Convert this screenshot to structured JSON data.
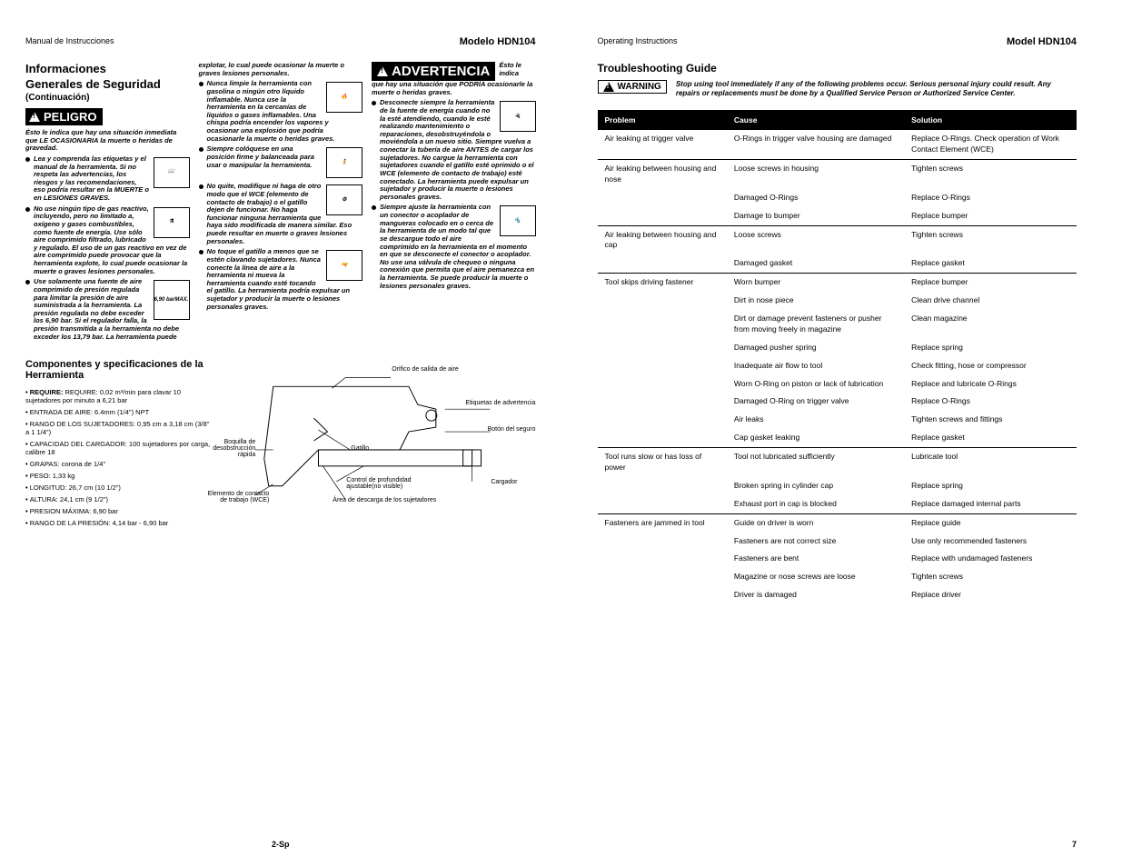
{
  "left_page": {
    "header_left": "Manual de Instrucciones",
    "header_right": "Modelo HDN104",
    "section_title_1": "Informaciones",
    "section_title_2": "Generales de Seguridad",
    "cont": "(Continuación)",
    "peligro": "PELIGRO",
    "peligro_intro": "Ésto le indica que hay una situación inmediata que LE OCASIONARIA la muerte o heridas de gravedad.",
    "b1": "Lea y comprenda las etiquetas y el manual de la herramienta. Si no respeta las advertencias, los riesgos y las recomendaciones, eso podría resultar en la MUERTE o en LESIONES GRAVES.",
    "b2": "No use ningún tipo de gas reactivo, incluyendo, pero no limitado a, oxígeno y gases combustibles, como fuente de energía. Use sólo aire comprimido filtrado, lubricado y regulado. El uso de un gas reactivo en vez de aire comprimido puede provocar que la herramienta explote, lo cual puede ocasionar la muerte o graves lesiones personales.",
    "b3": "Use solamente una fuente de aire comprimido de presión regulada para limitar la presión de aire suministrada a la herramienta. La presión regulada no debe exceder los 6,90 bar. Si el regulador falla, la presión transmitida a la herramienta no debe exceder los 13,79 bar. La herramienta puede",
    "gauge": "6,90 bar",
    "max": "MAX.",
    "col2_top": "explotar, lo cual puede ocasionar la muerte o graves lesiones personales.",
    "c1": "Nunca limpie la herramienta con gasolina o ningún otro líquido inflamable. Nunca use la herramienta en la cercanías de líquidos o gases inflamables. Una chispa podría encender los vapores y ocasionar una explosión que podría ocasionarle la muerte o heridas graves.",
    "c2": "Siempre colóquese en una posición firme y balanceada para usar o manipular la herramienta.",
    "c3": "No quite, modifique ni haga de otro modo que el WCE (elemento de contacto de trabajo) o el gatillo dejen de funcionar. No haga funcionar ninguna herramienta que haya sido modificada de manera similar. Eso puede resultar en muerte o graves lesiones personales.",
    "c4": "No toque el gatillo a menos que se estén clavando sujetadores. Nunca conecte la línea de aire a la herramienta ni mueva la herramienta cuando esté tocando el gatillo. La herramienta podría expulsar un sujetador y producir la muerte o lesiones personales graves.",
    "adv": "ADVERTENCIA",
    "adv_intro_a": "Ésto le indica",
    "adv_intro_b": "que hay una situación que PODRÍA ocasionarle la muerte o heridas graves.",
    "d1": "Desconecte siempre la herramienta de la fuente de energía cuando no la esté atendiendo, cuando le esté realizando mantenimiento o reparaciones, desobstruyéndola o moviéndola a un nuevo sitio. Siempre vuelva a conectar la tubería de aire ANTES de cargar los sujetadores. No cargue la herramienta con sujetadores cuando el gatillo esté oprimido o el WCE (elemento de contacto de trabajo) esté conectado. La herramienta puede expulsar un sujetador y producir la muerte o lesiones personales graves.",
    "d2": "Siempre ajuste la herramienta con un conector o acoplador de mangueras colocado en o cerca de la herramienta de un modo tal que se descargue todo el aire comprimido en la herramienta en el momento en que se desconecte el conector o acoplador. No use una válvula de chequeo o ninguna conexión que permita que el aire pemanezca en la herramienta. Se puede producir la muerte o lesiones personales graves.",
    "comp_title": "Componentes y specificaciones de la Herramienta",
    "specs": {
      "s1": "REQUIRE: 0,02 m³/min para clavar 10 sujetadores por minuto a 6,21 bar",
      "s2": "ENTRADA DE AIRE: 6.4mm (1/4\") NPT",
      "s3": "RANGO DE LOS SUJETADORES: 0,95 cm a 3,18 cm (3/8\" a 1 1/4\")",
      "s4": "CAPACIDAD DEL CARGADOR: 100 sujetadores por carga, calibre 18",
      "s5": "GRAPAS: corona de 1/4\"",
      "s6": "PESO: 1,33 kg",
      "s7": "LONGITUD: 26,7 cm (10 1/2\")",
      "s8": "ALTURA: 24,1 cm (9 1/2\")",
      "s9": "PRESION MÁXIMA: 6,90 bar",
      "s10": "RANGO DE LA PRESIÓN: 4,14 bar - 6,90 bar"
    },
    "dlabels": {
      "l1": "Orifico de salida de aire",
      "l2": "Etiquetas de advertencia",
      "l3": "Botón del seguro",
      "l4": "Gatillo",
      "l5": "Boquilla de desobstrucción rápida",
      "l6": "Control de profundidad ajustable(no visible)",
      "l7": "Cargador",
      "l8": "Elemento de contacto de trabajo (WCE)",
      "l9": "Área de descarga de los sujetadores"
    },
    "pagenum": "2-Sp"
  },
  "right_page": {
    "header_left": "Operating Instructions",
    "header_right": "Model HDN104",
    "ts_title": "Troubleshooting Guide",
    "warn_label": "WARNING",
    "warn_text": "Stop using tool immediately if any of the following problems occur. Serious personal injury could result. Any repairs or replacements must be done by a Qualified Service Person or Authorized Service Center.",
    "th1": "Problem",
    "th2": "Cause",
    "th3": "Solution",
    "rows": [
      {
        "p": "Air leaking at trigger valve",
        "c": "O-Rings in trigger valve housing are damaged",
        "s": "Replace O-Rings. Check operation of Work Contact Element (WCE)",
        "sep": false
      },
      {
        "p": "Air leaking between housing and nose",
        "c": "Loose screws in housing",
        "s": "Tighten screws",
        "sep": true
      },
      {
        "p": "",
        "c": "Damaged O-Rings",
        "s": "Replace O-Rings",
        "sep": false
      },
      {
        "p": "",
        "c": "Damage to bumper",
        "s": "Replace bumper",
        "sep": false
      },
      {
        "p": "Air leaking between housing and cap",
        "c": "Loose screws",
        "s": "Tighten screws",
        "sep": true
      },
      {
        "p": "",
        "c": "Damaged gasket",
        "s": "Replace gasket",
        "sep": false
      },
      {
        "p": "Tool skips driving fastener",
        "c": "Worn bumper",
        "s": "Replace bumper",
        "sep": true
      },
      {
        "p": "",
        "c": "Dirt in nose piece",
        "s": "Clean drive channel",
        "sep": false
      },
      {
        "p": "",
        "c": "Dirt or damage prevent fasteners or pusher from moving freely in magazine",
        "s": "Clean magazine",
        "sep": false
      },
      {
        "p": "",
        "c": "Damaged pusher spring",
        "s": "Replace spring",
        "sep": false
      },
      {
        "p": "",
        "c": "Inadequate air flow to tool",
        "s": "Check fitting, hose or compressor",
        "sep": false
      },
      {
        "p": "",
        "c": "Worn O-Ring on piston or lack of lubrication",
        "s": "Replace and lubricate O-Rings",
        "sep": false
      },
      {
        "p": "",
        "c": "Damaged O-Ring on trigger valve",
        "s": "Replace O-Rings",
        "sep": false
      },
      {
        "p": "",
        "c": "Air leaks",
        "s": "Tighten screws and fittings",
        "sep": false
      },
      {
        "p": "",
        "c": "Cap gasket leaking",
        "s": "Replace gasket",
        "sep": false
      },
      {
        "p": "Tool runs slow or has loss of power",
        "c": "Tool not lubricated sufficiently",
        "s": "Lubricate tool",
        "sep": true
      },
      {
        "p": "",
        "c": "Broken spring in cylinder cap",
        "s": "Replace spring",
        "sep": false
      },
      {
        "p": "",
        "c": "Exhaust port in cap is blocked",
        "s": "Replace damaged internal parts",
        "sep": false
      },
      {
        "p": "Fasteners are jammed in tool",
        "c": "Guide on driver is worn",
        "s": "Replace guide",
        "sep": true
      },
      {
        "p": "",
        "c": "Fasteners are not correct size",
        "s": "Use only recommended fasteners",
        "sep": false
      },
      {
        "p": "",
        "c": "Fasteners are bent",
        "s": "Replace with undamaged fasteners",
        "sep": false
      },
      {
        "p": "",
        "c": "Magazine or nose screws are loose",
        "s": "Tighten screws",
        "sep": false
      },
      {
        "p": "",
        "c": "Driver is damaged",
        "s": "Replace driver",
        "sep": false
      }
    ],
    "pagenum": "7"
  }
}
